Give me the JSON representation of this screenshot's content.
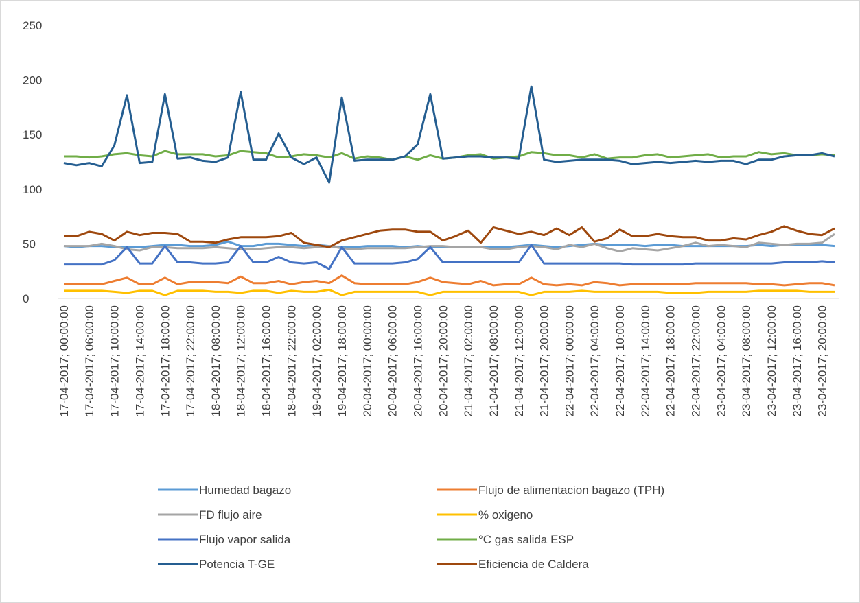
{
  "chart_data": {
    "type": "line",
    "categories": [
      "17-04-2017; 00:00:00",
      null,
      "17-04-2017; 06:00:00",
      null,
      "17-04-2017; 10:00:00",
      null,
      "17-04-2017; 14:00:00",
      null,
      "17-04-2017; 18:00:00",
      null,
      "17-04-2017; 22:00:00",
      null,
      "18-04-2017; 08:00:00",
      null,
      "18-04-2017; 12:00:00",
      null,
      "18-04-2017; 16:00:00",
      null,
      "18-04-2017; 22:00:00",
      null,
      "19-04-2017; 02:00:00",
      null,
      "19-04-2017; 18:00:00",
      null,
      "20-04-2017; 00:00:00",
      null,
      "20-04-2017; 06:00:00",
      null,
      "20-04-2017; 16:00:00",
      null,
      "20-04-2017; 20:00:00",
      null,
      "21-04-2017; 02:00:00",
      null,
      "21-04-2017; 08:00:00",
      null,
      "21-04-2017; 12:00:00",
      null,
      "21-04-2017; 20:00:00",
      null,
      "22-04-2017; 00:00:00",
      null,
      "22-04-2017; 04:00:00",
      null,
      "22-04-2017; 10:00:00",
      null,
      "22-04-2017; 14:00:00",
      null,
      "22-04-2017; 18:00:00",
      null,
      "22-04-2017; 22:00:00",
      null,
      "23-04-2017; 04:00:00",
      null,
      "23-04-2017; 08:00:00",
      null,
      "23-04-2017; 12:00:00",
      null,
      "23-04-2017; 16:00:00",
      null,
      "23-04-2017; 20:00:00",
      null
    ],
    "series": [
      {
        "name": "Humedad bagazo",
        "color": "#5b9bd5",
        "values": [
          48,
          47,
          48,
          48,
          47,
          47,
          47,
          48,
          49,
          49,
          48,
          48,
          49,
          52,
          48,
          48,
          50,
          50,
          49,
          48,
          49,
          48,
          47,
          47,
          48,
          48,
          48,
          47,
          48,
          47,
          47,
          47,
          47,
          47,
          47,
          47,
          48,
          49,
          48,
          47,
          48,
          49,
          50,
          49,
          49,
          49,
          48,
          49,
          49,
          48,
          48,
          48,
          48,
          48,
          48,
          49,
          48,
          49,
          49,
          49,
          49,
          48
        ]
      },
      {
        "name": "Flujo de alimentacion bagazo (TPH)",
        "color": "#ed7d31",
        "values": [
          13,
          13,
          13,
          13,
          16,
          19,
          13,
          13,
          19,
          13,
          15,
          15,
          15,
          14,
          20,
          14,
          14,
          16,
          13,
          15,
          16,
          14,
          21,
          14,
          13,
          13,
          13,
          13,
          15,
          19,
          15,
          14,
          13,
          16,
          12,
          13,
          13,
          19,
          13,
          12,
          13,
          12,
          15,
          14,
          12,
          13,
          13,
          13,
          13,
          13,
          14,
          14,
          14,
          14,
          14,
          13,
          13,
          12,
          13,
          14,
          14,
          12
        ]
      },
      {
        "name": "FD flujo aire",
        "color": "#a5a5a5",
        "values": [
          48,
          48,
          48,
          50,
          48,
          45,
          44,
          47,
          47,
          46,
          46,
          46,
          47,
          46,
          45,
          45,
          46,
          47,
          47,
          46,
          47,
          48,
          46,
          45,
          46,
          46,
          46,
          46,
          47,
          48,
          48,
          47,
          47,
          47,
          45,
          45,
          47,
          48,
          47,
          45,
          49,
          47,
          50,
          46,
          43,
          46,
          45,
          44,
          46,
          48,
          51,
          48,
          49,
          48,
          47,
          51,
          50,
          49,
          50,
          50,
          51,
          59
        ]
      },
      {
        "name": "% oxigeno",
        "color": "#ffc000",
        "values": [
          7,
          7,
          7,
          7,
          6,
          5,
          7,
          7,
          3,
          7,
          7,
          7,
          6,
          6,
          5,
          7,
          7,
          5,
          7,
          6,
          6,
          8,
          3,
          6,
          6,
          6,
          6,
          6,
          6,
          3,
          6,
          6,
          6,
          6,
          6,
          6,
          6,
          3,
          6,
          6,
          6,
          7,
          6,
          6,
          6,
          6,
          6,
          6,
          5,
          5,
          5,
          6,
          6,
          6,
          6,
          7,
          7,
          7,
          7,
          6,
          6,
          6
        ]
      },
      {
        "name": "Flujo vapor salida",
        "color": "#4472c4",
        "values": [
          31,
          31,
          31,
          31,
          35,
          47,
          32,
          32,
          48,
          33,
          33,
          32,
          32,
          33,
          48,
          33,
          33,
          38,
          33,
          32,
          33,
          27,
          47,
          32,
          32,
          32,
          32,
          33,
          36,
          47,
          33,
          33,
          33,
          33,
          33,
          33,
          33,
          49,
          32,
          32,
          32,
          32,
          32,
          32,
          32,
          31,
          31,
          31,
          31,
          31,
          32,
          32,
          32,
          32,
          32,
          32,
          32,
          33,
          33,
          33,
          34,
          33
        ]
      },
      {
        "name": "°C gas salida ESP",
        "color": "#70ad47",
        "values": [
          130,
          130,
          129,
          130,
          132,
          133,
          131,
          130,
          135,
          132,
          132,
          132,
          130,
          131,
          135,
          134,
          133,
          129,
          130,
          132,
          131,
          129,
          133,
          128,
          130,
          129,
          127,
          130,
          127,
          131,
          128,
          129,
          131,
          132,
          128,
          129,
          130,
          134,
          133,
          131,
          131,
          129,
          132,
          128,
          129,
          129,
          131,
          132,
          129,
          130,
          131,
          132,
          129,
          130,
          130,
          134,
          132,
          133,
          131,
          131,
          132,
          131
        ]
      },
      {
        "name": "Potencia T-GE",
        "color": "#255e91",
        "values": [
          124,
          122,
          124,
          121,
          140,
          186,
          124,
          125,
          187,
          128,
          129,
          126,
          125,
          129,
          189,
          127,
          127,
          151,
          129,
          123,
          129,
          106,
          184,
          126,
          127,
          127,
          127,
          130,
          141,
          187,
          128,
          129,
          130,
          130,
          129,
          129,
          128,
          194,
          127,
          125,
          126,
          127,
          127,
          127,
          126,
          123,
          124,
          125,
          124,
          125,
          126,
          125,
          126,
          126,
          123,
          127,
          127,
          130,
          131,
          131,
          133,
          130
        ]
      },
      {
        "name": "Eficiencia de Caldera",
        "color": "#9e480e",
        "values": [
          57,
          57,
          61,
          59,
          53,
          61,
          58,
          60,
          60,
          59,
          52,
          52,
          51,
          54,
          56,
          56,
          56,
          57,
          60,
          51,
          49,
          47,
          53,
          56,
          59,
          62,
          63,
          63,
          61,
          61,
          53,
          57,
          62,
          51,
          65,
          62,
          59,
          61,
          58,
          64,
          58,
          65,
          52,
          55,
          63,
          57,
          57,
          59,
          57,
          56,
          56,
          53,
          53,
          55,
          54,
          58,
          61,
          66,
          62,
          59,
          58,
          64
        ]
      }
    ],
    "ylim": [
      0,
      250
    ],
    "yticks": [
      0,
      50,
      100,
      150,
      200,
      250
    ]
  }
}
